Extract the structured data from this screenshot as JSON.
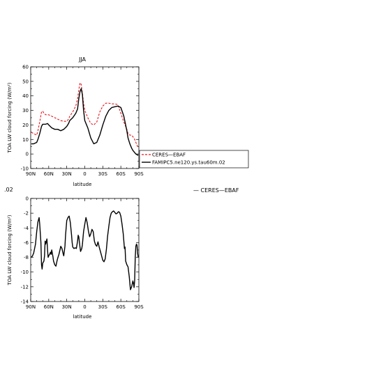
{
  "colors": {
    "ceres": "#e8141c",
    "model": "#000000"
  },
  "fragments": {
    "left_text": ".02",
    "right_text": "— CERES—EBAF"
  },
  "legend": {
    "entries": [
      "CERES—EBAF",
      "FAMIPC5.ne120.ys.tau60m.02"
    ]
  },
  "chart_data": [
    {
      "type": "line",
      "title": "JJA",
      "xlabel": "latitude",
      "ylabel": "TOA LW cloud forcing (W/m²)",
      "xlim": [
        90,
        -90
      ],
      "ylim": [
        -10,
        60
      ],
      "xticks": [
        90,
        60,
        30,
        0,
        -30,
        -60,
        -90
      ],
      "xtick_labels": [
        "90N",
        "60N",
        "30N",
        "0",
        "30S",
        "60S",
        "90S"
      ],
      "yticks": [
        -10,
        0,
        10,
        20,
        30,
        40,
        50,
        60
      ],
      "grid": false,
      "legend_placement": "right",
      "series": [
        {
          "name": "CERES—EBAF",
          "style": "dashed",
          "x": [
            89,
            85,
            80,
            78,
            75,
            72,
            70,
            68,
            65,
            62,
            60,
            55,
            50,
            45,
            40,
            35,
            30,
            27,
            25,
            20,
            15,
            12,
            10,
            8,
            6,
            4,
            2,
            0,
            -3,
            -5,
            -10,
            -15,
            -20,
            -25,
            -30,
            -35,
            -40,
            -45,
            -50,
            -55,
            -60,
            -65,
            -70,
            -72,
            -75,
            -78,
            -80,
            -83,
            -85,
            -87,
            -89
          ],
          "y": [
            15,
            14,
            13,
            16,
            22,
            29,
            29.5,
            28,
            27,
            27,
            27,
            26,
            25,
            24,
            23,
            22.5,
            22.5,
            24,
            26,
            29,
            33,
            38,
            44,
            49,
            48,
            42,
            35,
            30,
            27,
            25,
            21,
            20,
            22,
            29,
            33,
            35,
            35,
            34.5,
            34.5,
            34,
            28,
            22,
            17,
            14,
            13,
            13,
            12,
            10,
            8,
            6,
            4
          ]
        },
        {
          "name": "FAMIPC5.ne120.ys.tau60m.02",
          "style": "solid",
          "x": [
            89,
            85,
            80,
            78,
            75,
            72,
            70,
            68,
            65,
            62,
            60,
            55,
            50,
            45,
            40,
            35,
            30,
            27,
            25,
            20,
            15,
            12,
            10,
            8,
            6,
            4,
            2,
            0,
            -3,
            -5,
            -10,
            -15,
            -20,
            -25,
            -30,
            -35,
            -40,
            -45,
            -50,
            -55,
            -60,
            -65,
            -70,
            -72,
            -75,
            -78,
            -80,
            -83,
            -85,
            -87,
            -89
          ],
          "y": [
            7,
            7,
            8,
            10,
            14,
            19,
            20.5,
            20.5,
            20.5,
            21,
            20,
            18,
            17,
            17,
            16,
            17,
            19,
            21,
            23,
            25,
            28,
            31,
            38,
            43,
            45,
            41,
            30,
            23,
            20,
            18,
            11,
            7,
            8,
            13,
            20,
            26,
            30,
            32,
            32.5,
            33,
            32,
            26,
            16,
            11,
            7,
            4,
            2.5,
            1,
            0,
            -0.5,
            -1
          ]
        }
      ]
    },
    {
      "type": "line",
      "title": "",
      "xlabel": "latitude",
      "ylabel": "TOA LW cloud forcing (W/m²)",
      "xlim": [
        90,
        -90
      ],
      "ylim": [
        -14,
        0
      ],
      "xticks": [
        90,
        60,
        30,
        0,
        -30,
        -60,
        -90
      ],
      "xtick_labels": [
        "90N",
        "60N",
        "30N",
        "0",
        "30S",
        "60S",
        "90S"
      ],
      "yticks": [
        -14,
        -12,
        -10,
        -8,
        -6,
        -4,
        -2,
        0
      ],
      "grid": false,
      "series": [
        {
          "name": "",
          "style": "solid",
          "x": [
            89,
            87,
            85,
            82,
            80,
            78,
            76,
            75,
            73,
            72,
            71,
            70,
            68,
            67,
            66,
            65,
            63,
            62,
            61,
            60,
            58,
            57,
            56,
            55,
            53,
            52,
            50,
            48,
            46,
            45,
            43,
            41,
            40,
            38,
            36,
            35,
            33,
            32,
            31,
            30,
            28,
            26,
            24,
            22,
            21,
            20,
            18,
            16,
            14,
            12,
            11,
            10,
            8,
            7,
            5,
            4,
            2,
            0,
            -2,
            -4,
            -6,
            -8,
            -10,
            -12,
            -14,
            -16,
            -18,
            -20,
            -22,
            -24,
            -26,
            -28,
            -30,
            -32,
            -34,
            -36,
            -38,
            -40,
            -42,
            -44,
            -46,
            -48,
            -50,
            -52,
            -54,
            -56,
            -58,
            -60,
            -62,
            -64,
            -66,
            -67,
            -68,
            -70,
            -72,
            -74,
            -76,
            -78,
            -80,
            -81,
            -82,
            -83,
            -84,
            -85,
            -86,
            -87,
            -88,
            -89
          ],
          "y": [
            -8,
            -7.8,
            -7.4,
            -6.2,
            -4.5,
            -3.2,
            -2.6,
            -3.5,
            -6,
            -9,
            -9.6,
            -8.8,
            -8.5,
            -7.8,
            -5.8,
            -6.2,
            -5.5,
            -7,
            -8,
            -7.8,
            -7.5,
            -7.3,
            -7.6,
            -7,
            -7.9,
            -8.5,
            -9,
            -9.2,
            -8.4,
            -8.1,
            -7.6,
            -6.9,
            -6.5,
            -6.8,
            -7.5,
            -7.8,
            -6.5,
            -5,
            -4,
            -3,
            -2.6,
            -2.4,
            -3.3,
            -5,
            -6,
            -6.6,
            -6.8,
            -6.7,
            -6.8,
            -5.8,
            -5,
            -5.2,
            -6.6,
            -7.2,
            -6.8,
            -6.3,
            -4.5,
            -3.5,
            -2.6,
            -3.3,
            -4.4,
            -5.2,
            -4.8,
            -4.2,
            -4.5,
            -5.8,
            -6.3,
            -6.5,
            -5.9,
            -6.6,
            -7.2,
            -7.8,
            -8.4,
            -8.6,
            -8.2,
            -6.9,
            -5.1,
            -3.8,
            -2.6,
            -2.0,
            -1.8,
            -1.7,
            -1.9,
            -2.1,
            -2.0,
            -1.8,
            -1.9,
            -2.4,
            -3.5,
            -4.8,
            -6.8,
            -6.6,
            -8.5,
            -9.0,
            -9.3,
            -10.6,
            -12.4,
            -12.0,
            -11.2,
            -11.5,
            -12.1,
            -11.2,
            -8.0,
            -6.5,
            -6.2,
            -6.4,
            -7.5,
            -8.0
          ]
        }
      ]
    }
  ]
}
